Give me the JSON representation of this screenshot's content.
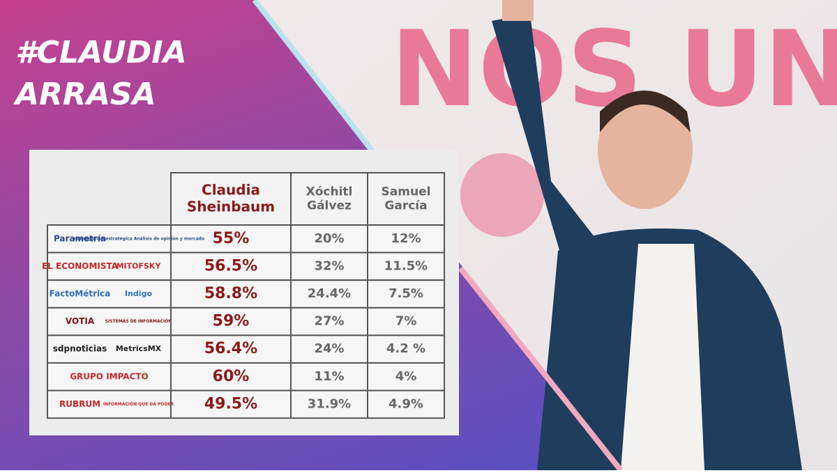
{
  "header": {
    "title_line1": "#CLAUDIA",
    "title_line2": "ARRASA"
  },
  "banner_text": "NOS UN",
  "table": {
    "columns": [
      "Claudia Sheinbaum",
      "Xóchitl Gálvez",
      "Samuel García"
    ],
    "rows": [
      {
        "pollster": [
          "Parametría",
          "Investigación estratégica Análisis de opinión y mercado"
        ],
        "values": [
          "55%",
          "20%",
          "12%"
        ]
      },
      {
        "pollster": [
          "EL ECONOMISTA",
          "MITOFSKY"
        ],
        "values": [
          "56.5%",
          "32%",
          "11.5%"
        ]
      },
      {
        "pollster": [
          "FactoMétrica",
          "Indigo"
        ],
        "values": [
          "58.8%",
          "24.4%",
          "7.5%"
        ]
      },
      {
        "pollster": [
          "VOTIA",
          "SISTEMAS DE INFORMACIÓN"
        ],
        "values": [
          "59%",
          "27%",
          "7%"
        ]
      },
      {
        "pollster": [
          "sdpnoticias",
          "MetricsMX"
        ],
        "values": [
          "56.4%",
          "24%",
          "4.2 %"
        ]
      },
      {
        "pollster": [
          "GRUPO IMPACTO"
        ],
        "values": [
          "60%",
          "11%",
          "4%"
        ]
      },
      {
        "pollster": [
          "RUBRUM",
          "INFORMACIÓN QUE DA PODER"
        ],
        "values": [
          "49.5%",
          "31.9%",
          "4.9%"
        ]
      }
    ]
  }
}
